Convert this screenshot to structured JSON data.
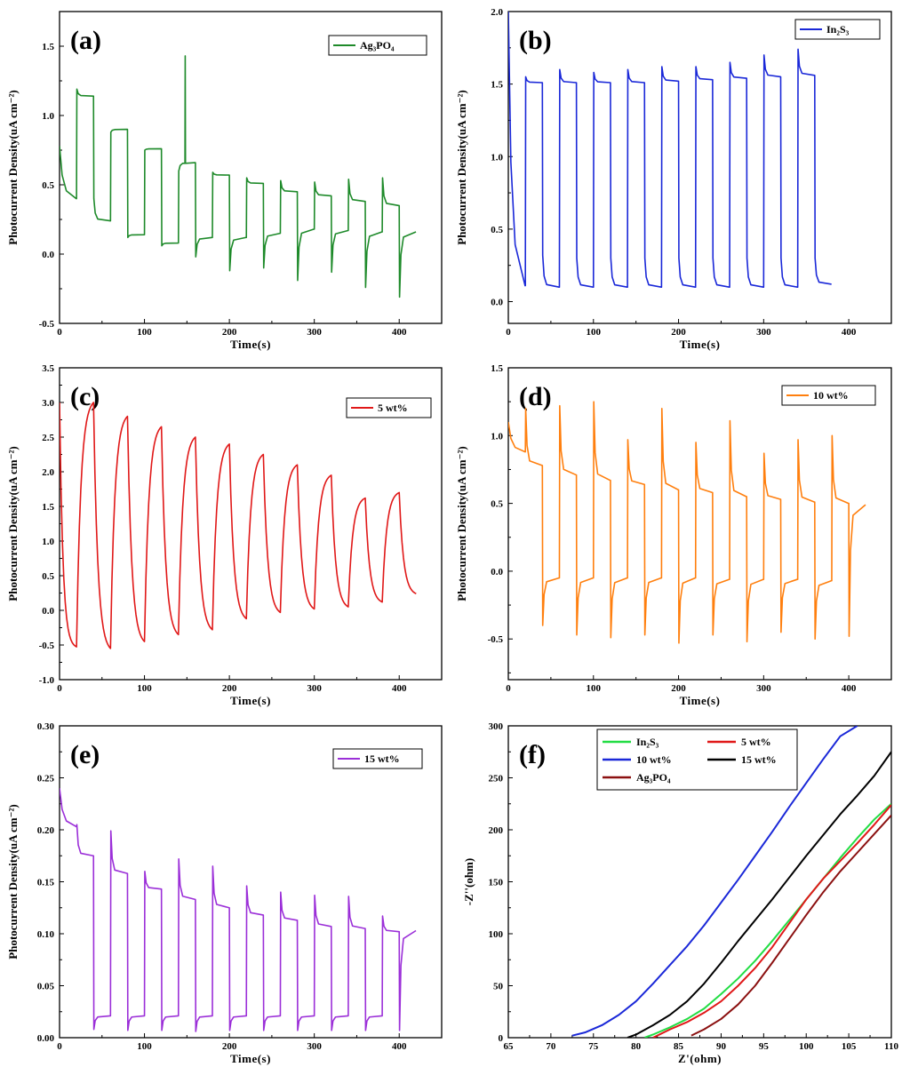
{
  "chart_data": [
    {
      "panel": "(a)",
      "type": "line",
      "xlabel": "Time(s)",
      "ylabel": "Photocurrent Density(uA cm⁻²)",
      "xlim": [
        0,
        450
      ],
      "ylim": [
        -0.5,
        1.75
      ],
      "xticks": [
        "0",
        "100",
        "200",
        "300",
        "400"
      ],
      "yticks": [
        "-0.5",
        "0.0",
        "0.5",
        "1.0",
        "1.5"
      ],
      "legend_position": "top-right",
      "series": [
        {
          "name": "Ag₃PO₄",
          "color": "#1e8a2a",
          "pattern": "chopped",
          "period_s": 40,
          "end_s": 420,
          "on_levels": [
            1.14,
            0.9,
            0.76,
            0.66,
            0.57,
            0.51,
            0.45,
            0.42,
            0.38,
            0.35
          ],
          "off_levels": [
            0.4,
            0.24,
            0.14,
            0.08,
            0.12,
            0.12,
            0.15,
            0.18,
            0.17,
            0.16,
            0.16
          ],
          "on_spikes": [
            1.19,
            0.88,
            0.75,
            0.6,
            0.59,
            0.55,
            0.53,
            0.52,
            0.54,
            0.55
          ],
          "off_spikes": [
            0.4,
            0.12,
            0.06,
            -0.02,
            -0.12,
            -0.1,
            -0.19,
            -0.13,
            -0.24,
            -0.31
          ],
          "initial": 0.78,
          "sharp_spike": {
            "x": 148,
            "y": 1.43
          }
        }
      ]
    },
    {
      "panel": "(b)",
      "type": "line",
      "xlabel": "Time(s)",
      "ylabel": "Photocurrent Density(uA cm⁻²)",
      "xlim": [
        0,
        450
      ],
      "ylim": [
        -0.15,
        2.0
      ],
      "xticks": [
        "0",
        "100",
        "200",
        "300",
        "400"
      ],
      "yticks": [
        "0.0",
        "0.5",
        "1.0",
        "1.5",
        "2.0"
      ],
      "legend_position": "top-right",
      "series": [
        {
          "name": "In₂S₃",
          "color": "#1a28d8",
          "pattern": "chopped",
          "period_s": 40,
          "end_s": 400,
          "on_levels": [
            1.51,
            1.51,
            1.51,
            1.51,
            1.52,
            1.53,
            1.54,
            1.55,
            1.56
          ],
          "off_levels": [
            0.11,
            0.1,
            0.1,
            0.1,
            0.1,
            0.1,
            0.1,
            0.1,
            0.1,
            0.12
          ],
          "on_spikes": [
            1.55,
            1.6,
            1.58,
            1.6,
            1.62,
            1.62,
            1.65,
            1.7,
            1.74
          ],
          "off_spikes": [
            0.32,
            0.3,
            0.3,
            0.3,
            0.3,
            0.3,
            0.3,
            0.3,
            0.3,
            0.28
          ],
          "initial": 2.0
        }
      ]
    },
    {
      "panel": "(c)",
      "type": "line",
      "xlabel": "Time(s)",
      "ylabel": "Photocurrent Density(uA cm⁻²)",
      "xlim": [
        0,
        450
      ],
      "ylim": [
        -1.0,
        3.5
      ],
      "xticks": [
        "0",
        "100",
        "200",
        "300",
        "400"
      ],
      "yticks": [
        "-1.0",
        "-0.5",
        "0.0",
        "0.5",
        "1.0",
        "1.5",
        "2.0",
        "2.5",
        "3.0",
        "3.5"
      ],
      "legend_position": "top-right",
      "series": [
        {
          "name": "5 wt%",
          "color": "#e01818",
          "pattern": "exponential",
          "period_s": 40,
          "end_s": 420,
          "peaks": [
            3.0,
            2.8,
            2.65,
            2.5,
            2.4,
            2.25,
            2.1,
            1.95,
            1.62,
            1.7
          ],
          "valleys": [
            -0.55,
            -0.55,
            -0.45,
            -0.35,
            -0.28,
            -0.12,
            -0.03,
            0.02,
            0.05,
            0.12,
            0.24
          ],
          "initial": 3.0
        }
      ]
    },
    {
      "panel": "(d)",
      "type": "line",
      "xlabel": "Time(s)",
      "ylabel": "Photocurrent Density(uA cm⁻²)",
      "xlim": [
        0,
        450
      ],
      "ylim": [
        -0.8,
        1.5
      ],
      "xticks": [
        "0",
        "100",
        "200",
        "300",
        "400"
      ],
      "yticks": [
        "-0.5",
        "0.0",
        "0.5",
        "1.0",
        "1.5"
      ],
      "legend_position": "top-right",
      "series": [
        {
          "name": "10 wt%",
          "color": "#ff7f0e",
          "pattern": "chopped",
          "period_s": 40,
          "end_s": 420,
          "on_levels": [
            0.78,
            0.71,
            0.67,
            0.64,
            0.6,
            0.58,
            0.55,
            0.53,
            0.51,
            0.5
          ],
          "off_levels": [
            0.88,
            -0.05,
            -0.05,
            -0.05,
            -0.05,
            -0.05,
            -0.06,
            -0.06,
            -0.06,
            -0.07,
            0.49
          ],
          "on_spikes": [
            1.2,
            1.22,
            1.25,
            0.97,
            1.2,
            0.95,
            1.11,
            0.87,
            0.97,
            1.0
          ],
          "off_spikes": [
            -0.4,
            -0.47,
            -0.49,
            -0.47,
            -0.53,
            -0.47,
            -0.52,
            -0.45,
            -0.5,
            -0.48
          ],
          "initial": 1.1
        }
      ]
    },
    {
      "panel": "(e)",
      "type": "line",
      "xlabel": "Time(s)",
      "ylabel": "Photocurrent Density(uA cm⁻²)",
      "xlim": [
        0,
        450
      ],
      "ylim": [
        0.0,
        0.3
      ],
      "xticks": [
        "0",
        "100",
        "200",
        "300",
        "400"
      ],
      "yticks": [
        "0.00",
        "0.05",
        "0.10",
        "0.15",
        "0.20",
        "0.25",
        "0.30"
      ],
      "legend_position": "top-right",
      "series": [
        {
          "name": "15 wt%",
          "color": "#9b2fd8",
          "pattern": "chopped",
          "period_s": 40,
          "end_s": 420,
          "on_levels": [
            0.175,
            0.158,
            0.143,
            0.133,
            0.125,
            0.118,
            0.113,
            0.107,
            0.105,
            0.102
          ],
          "off_levels": [
            0.203,
            0.021,
            0.021,
            0.021,
            0.021,
            0.021,
            0.021,
            0.021,
            0.021,
            0.021,
            0.103
          ],
          "on_spikes": [
            0.205,
            0.199,
            0.16,
            0.172,
            0.165,
            0.146,
            0.14,
            0.137,
            0.136,
            0.117
          ],
          "off_spikes": [
            0.008,
            0.007,
            0.007,
            0.006,
            0.007,
            0.007,
            0.007,
            0.007,
            0.007,
            0.007
          ],
          "initial": 0.24
        }
      ]
    },
    {
      "panel": "(f)",
      "type": "line",
      "xlabel": "Z'(ohm)",
      "ylabel": "-Z''(ohm)",
      "xlim": [
        65,
        110
      ],
      "ylim": [
        0,
        300
      ],
      "xticks": [
        "65",
        "70",
        "75",
        "80",
        "85",
        "90",
        "95",
        "100",
        "105",
        "110"
      ],
      "yticks": [
        "0",
        "50",
        "100",
        "150",
        "200",
        "250",
        "300"
      ],
      "legend_position": "top-left",
      "series": [
        {
          "name": "In₂S₃",
          "color": "#22dd44",
          "x": [
            81,
            82,
            84,
            86,
            88,
            90,
            92,
            94,
            96,
            98,
            100,
            102,
            104,
            106,
            108,
            110
          ],
          "y": [
            0,
            3,
            10,
            18,
            28,
            42,
            57,
            74,
            93,
            113,
            133,
            153,
            173,
            192,
            210,
            225
          ]
        },
        {
          "name": "5 wt%",
          "color": "#e01818",
          "x": [
            82,
            84,
            86,
            88,
            90,
            92,
            94,
            96,
            98,
            100,
            102,
            104,
            106,
            108,
            110
          ],
          "y": [
            0,
            8,
            15,
            24,
            35,
            50,
            67,
            87,
            110,
            133,
            153,
            170,
            187,
            205,
            224
          ]
        },
        {
          "name": "10 wt%",
          "color": "#1a28d8",
          "x": [
            72.5,
            74,
            76,
            78,
            80,
            82,
            84,
            86,
            88,
            90,
            92,
            94,
            96,
            98,
            100,
            102,
            104,
            106
          ],
          "y": [
            2,
            5,
            12,
            22,
            35,
            52,
            70,
            88,
            108,
            130,
            152,
            175,
            198,
            222,
            245,
            268,
            290,
            300
          ]
        },
        {
          "name": "15 wt%",
          "color": "#000000",
          "x": [
            79,
            80,
            82,
            84,
            86,
            88,
            90,
            92,
            94,
            96,
            98,
            100,
            102,
            104,
            106,
            108,
            110
          ],
          "y": [
            0,
            3,
            12,
            22,
            35,
            52,
            72,
            93,
            113,
            133,
            154,
            175,
            195,
            215,
            233,
            252,
            275
          ]
        },
        {
          "name": "Ag₃PO₄",
          "color": "#8b1010",
          "x": [
            86.5,
            88,
            90,
            92,
            94,
            96,
            98,
            100,
            102,
            104,
            106,
            108,
            110
          ],
          "y": [
            2,
            8,
            18,
            32,
            50,
            72,
            95,
            118,
            140,
            160,
            178,
            196,
            214
          ]
        }
      ]
    }
  ]
}
